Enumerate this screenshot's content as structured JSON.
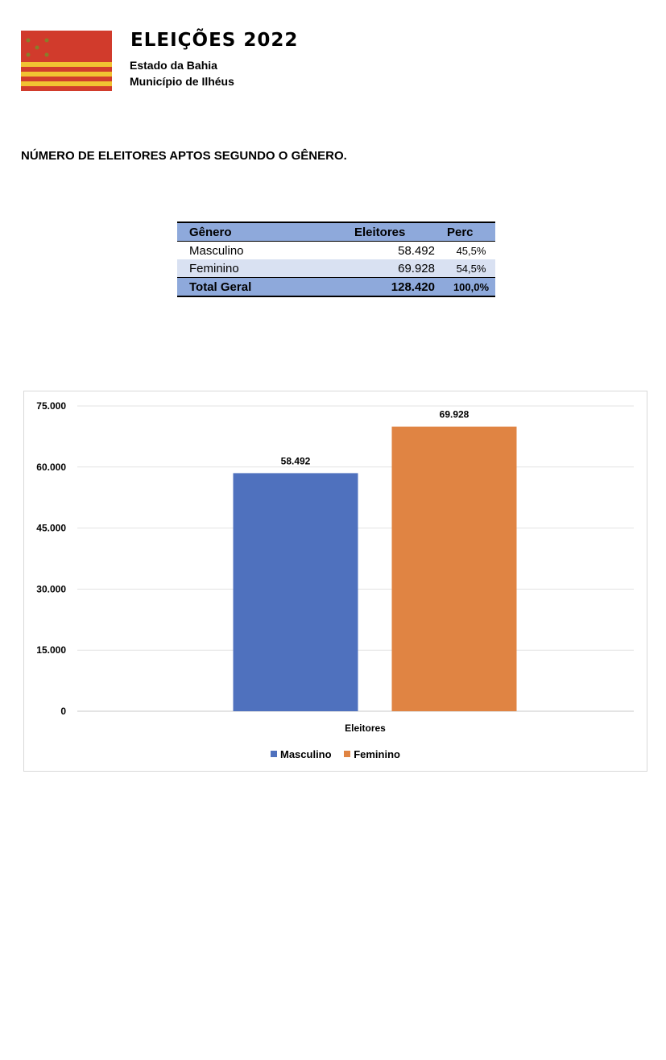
{
  "header": {
    "title": "ELEIÇÕES 2022",
    "state": "Estado da Bahia",
    "municipality": "Município de Ilhéus"
  },
  "section_title": "NÚMERO DE ELEITORES APTOS SEGUNDO O GÊNERO.",
  "table": {
    "headers": [
      "Gênero",
      "Eleitores",
      "Perc"
    ],
    "rows": [
      [
        "Masculino",
        "58.492",
        "45,5%"
      ],
      [
        "Feminino",
        "69.928",
        "54,5%"
      ]
    ],
    "total": [
      "Total Geral",
      "128.420",
      "100,0%"
    ]
  },
  "colors": {
    "masculino": "#4f71be",
    "feminino": "#e08443",
    "table_header": "#8ea9db",
    "table_alt": "#d9e1f2"
  },
  "chart_data": {
    "type": "bar",
    "categories": [
      "Eleitores"
    ],
    "series": [
      {
        "name": "Masculino",
        "values": [
          58492
        ],
        "label": "58.492"
      },
      {
        "name": "Feminino",
        "values": [
          69928
        ],
        "label": "69.928"
      }
    ],
    "xlabel": "Eleitores",
    "ylim": [
      0,
      75000
    ],
    "yticks": [
      0,
      15000,
      30000,
      45000,
      60000,
      75000
    ],
    "ytick_labels": [
      "0",
      "15.000",
      "30.000",
      "45.000",
      "60.000",
      "75.000"
    ],
    "grid": true,
    "legend": "bottom"
  }
}
